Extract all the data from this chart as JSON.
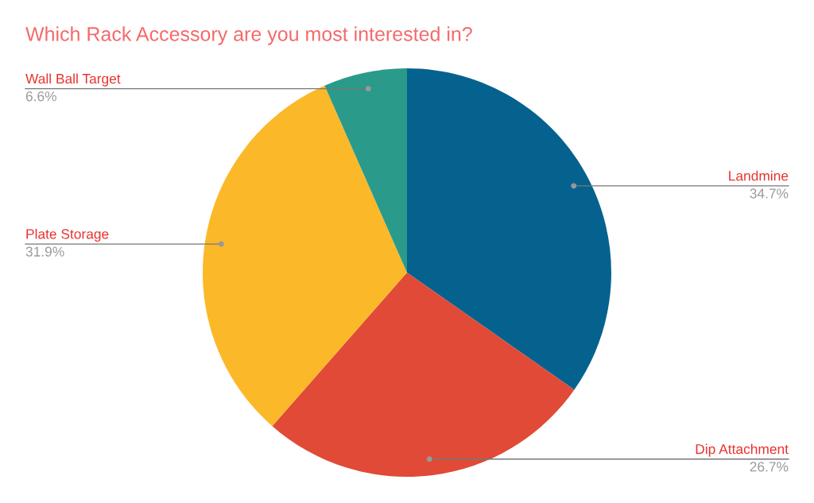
{
  "chart_data": {
    "type": "pie",
    "title": "Which Rack Accessory are you most interested in?",
    "categories": [
      "Landmine",
      "Dip Attachment",
      "Plate Storage",
      "Wall Ball Target"
    ],
    "values": [
      34.7,
      26.7,
      31.9,
      6.6
    ],
    "value_labels": [
      "34.7%",
      "26.7%",
      "31.9%",
      "6.6%"
    ],
    "colors": [
      "#05628f",
      "#e04a37",
      "#fbb829",
      "#2a9a8a"
    ],
    "legend": false
  }
}
